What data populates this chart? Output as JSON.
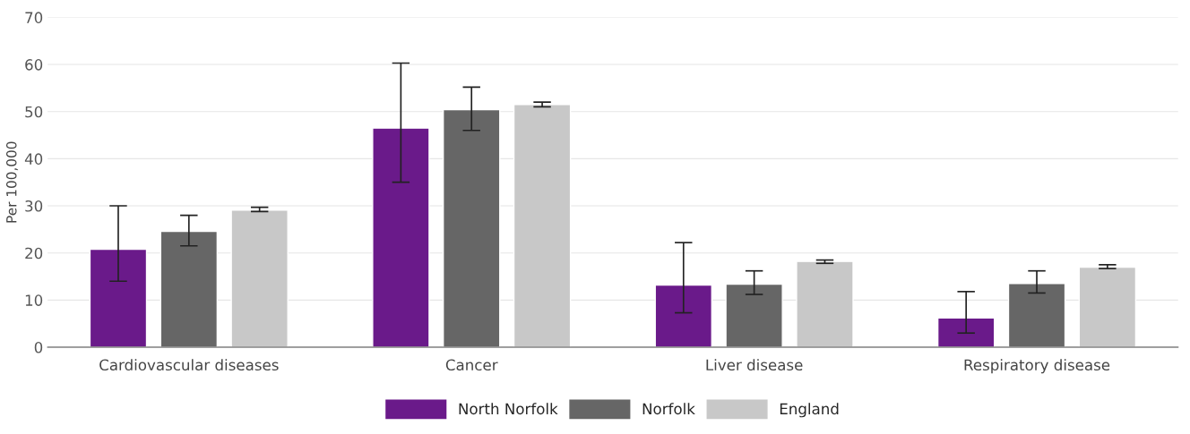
{
  "chart_data": {
    "type": "bar",
    "ylabel": "Per 100,000",
    "categories": [
      "Cardiovascular diseases",
      "Cancer",
      "Liver disease",
      "Respiratory disease"
    ],
    "series": [
      {
        "name": "North Norfolk",
        "color": "#6a1a8a",
        "values": [
          20.8,
          46.5,
          13.2,
          6.2
        ],
        "errors": [
          [
            14,
            30
          ],
          [
            35,
            60.3
          ],
          [
            7.3,
            22.2
          ],
          [
            3,
            11.8
          ]
        ]
      },
      {
        "name": "Norfolk",
        "color": "#666666",
        "values": [
          24.6,
          50.4,
          13.4,
          13.5
        ],
        "errors": [
          [
            21.5,
            28
          ],
          [
            46,
            55.2
          ],
          [
            11.2,
            16.2
          ],
          [
            11.5,
            16.2
          ]
        ]
      },
      {
        "name": "England",
        "color": "#c8c8c8",
        "values": [
          29.1,
          51.5,
          18.2,
          17
        ],
        "errors": [
          [
            28.8,
            29.7
          ],
          [
            51,
            52
          ],
          [
            17.8,
            18.5
          ],
          [
            16.7,
            17.5
          ]
        ]
      }
    ],
    "ylim": [
      0,
      70
    ],
    "yticks": [
      0,
      10,
      20,
      30,
      40,
      50,
      60,
      70
    ],
    "grid": "y",
    "legend": "bottom"
  }
}
